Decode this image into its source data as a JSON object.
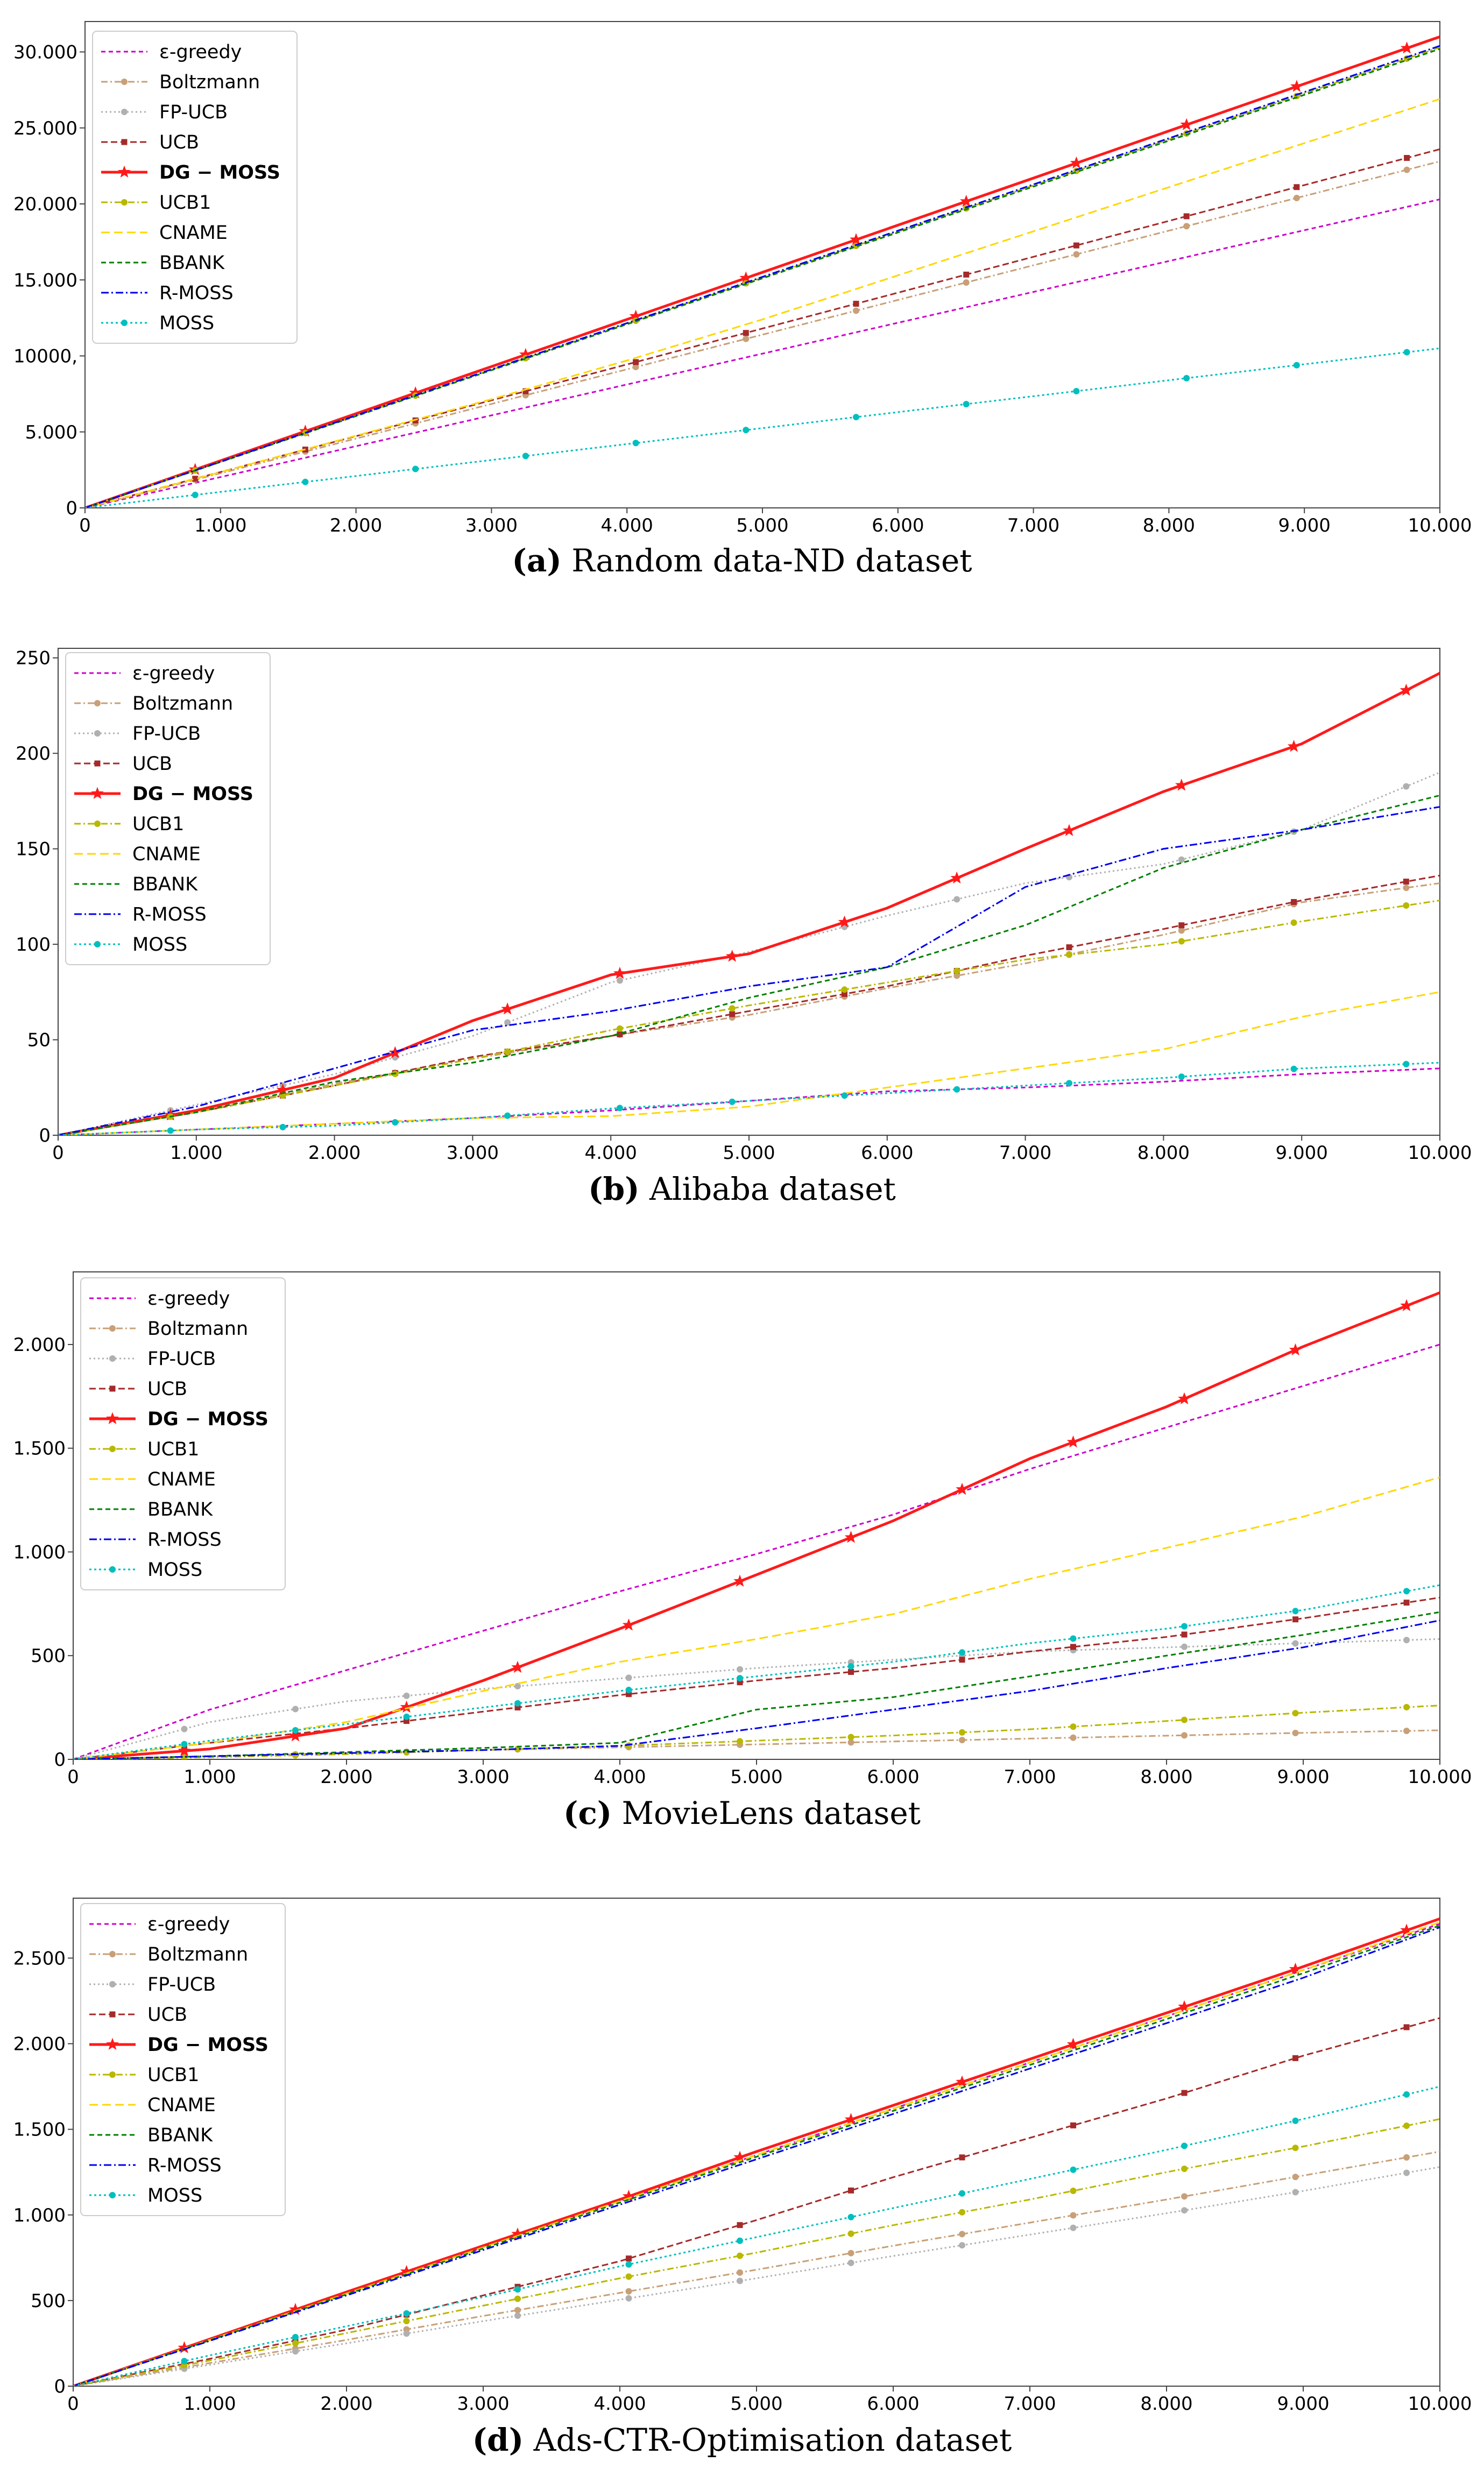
{
  "legend_series": [
    "ε-greedy",
    "Boltzmann",
    "FP-UCB",
    "UCB",
    "DG − MOSS",
    "UCB1",
    "CNAME",
    "BBANK",
    "R-MOSS",
    "MOSS"
  ],
  "colors": {
    "ε-greedy": "#cc00cc",
    "Boltzmann": "#c8a078",
    "FP-UCB": "#b0b0b0",
    "UCB": "#a52a2a",
    "DG − MOSS": "#ff1a1a",
    "UCB1": "#b8b800",
    "CNAME": "#ffd700",
    "BBANK": "#008000",
    "R-MOSS": "#0000ee",
    "MOSS": "#00bfbf"
  },
  "chart_data": [
    {
      "type": "line",
      "panel_label": "(a)",
      "caption": "Random data-ND dataset",
      "xlim": [
        0,
        10000
      ],
      "ylim": [
        0,
        32000
      ],
      "xticks": [
        0,
        1000,
        2000,
        3000,
        4000,
        5000,
        6000,
        7000,
        8000,
        9000,
        10000
      ],
      "xtick_labels": [
        "0",
        "1.000",
        "2.000",
        "3.000",
        "4.000",
        "5.000",
        "6.000",
        "7.000",
        "8.000",
        "9.000",
        "10.000"
      ],
      "yticks": [
        0,
        5000,
        10000,
        15000,
        20000,
        25000,
        30000
      ],
      "ytick_labels": [
        "0",
        "5.000",
        "10000,",
        "15.000",
        "20.000",
        "25.000",
        "30.000"
      ],
      "x": [
        0,
        1000,
        2000,
        3000,
        4000,
        5000,
        6000,
        7000,
        8000,
        9000,
        10000
      ],
      "series": [
        {
          "name": "ε-greedy",
          "values": [
            0,
            2030,
            4060,
            6090,
            8120,
            10150,
            12180,
            14210,
            16240,
            18270,
            20300
          ]
        },
        {
          "name": "Boltzmann",
          "values": [
            0,
            2280,
            4560,
            6840,
            9120,
            11400,
            13680,
            15960,
            18240,
            20520,
            22800
          ]
        },
        {
          "name": "FP-UCB",
          "values": [
            0,
            3030,
            6060,
            9090,
            12120,
            15150,
            18180,
            21210,
            24240,
            27270,
            30300
          ]
        },
        {
          "name": "UCB",
          "values": [
            0,
            2360,
            4720,
            7080,
            9440,
            11800,
            14160,
            16520,
            18880,
            21240,
            23600
          ]
        },
        {
          "name": "DG − MOSS",
          "values": [
            0,
            3100,
            6200,
            9300,
            12400,
            15500,
            18600,
            21700,
            24800,
            27900,
            31000
          ]
        },
        {
          "name": "UCB1",
          "values": [
            0,
            3030,
            6060,
            9090,
            12120,
            15150,
            18180,
            21210,
            24240,
            27270,
            30300
          ]
        },
        {
          "name": "CNAME",
          "values": [
            0,
            2350,
            4750,
            7150,
            9700,
            12400,
            15300,
            18200,
            21100,
            24000,
            26900
          ]
        },
        {
          "name": "BBANK",
          "values": [
            0,
            3020,
            6040,
            9060,
            12080,
            15100,
            18120,
            21140,
            24160,
            27180,
            30200
          ]
        },
        {
          "name": "R-MOSS",
          "values": [
            0,
            3040,
            6080,
            9120,
            12160,
            15200,
            18240,
            21280,
            24320,
            27360,
            30400
          ]
        },
        {
          "name": "MOSS",
          "values": [
            0,
            1050,
            2100,
            3150,
            4200,
            5250,
            6300,
            7350,
            8400,
            9450,
            10500
          ]
        }
      ]
    },
    {
      "type": "line",
      "panel_label": "(b)",
      "caption": "Alibaba dataset",
      "xlim": [
        0,
        10000
      ],
      "ylim": [
        0,
        255
      ],
      "xticks": [
        0,
        1000,
        2000,
        3000,
        4000,
        5000,
        6000,
        7000,
        8000,
        9000,
        10000
      ],
      "xtick_labels": [
        "0",
        "1.000",
        "2.000",
        "3.000",
        "4.000",
        "5.000",
        "6.000",
        "7.000",
        "8.000",
        "9.000",
        "10.000"
      ],
      "yticks": [
        0,
        50,
        100,
        150,
        200,
        250
      ],
      "ytick_labels": [
        "0",
        "50",
        "100",
        "150",
        "200",
        "250"
      ],
      "x": [
        0,
        1000,
        2000,
        3000,
        4000,
        5000,
        6000,
        7000,
        8000,
        9000,
        10000
      ],
      "series": [
        {
          "name": "ε-greedy",
          "values": [
            0,
            3,
            6,
            9,
            13,
            18,
            23,
            25,
            28,
            32,
            35
          ]
        },
        {
          "name": "Boltzmann",
          "values": [
            0,
            12,
            27,
            40,
            52,
            63,
            77,
            90,
            105,
            122,
            132
          ]
        },
        {
          "name": "FP-UCB",
          "values": [
            0,
            16,
            32,
            52,
            80,
            96,
            115,
            132,
            142,
            160,
            190
          ]
        },
        {
          "name": "UCB",
          "values": [
            0,
            12,
            26,
            41,
            52,
            65,
            78,
            94,
            108,
            123,
            136
          ]
        },
        {
          "name": "DG − MOSS",
          "values": [
            0,
            13,
            30,
            60,
            84,
            95,
            119,
            150,
            180,
            205,
            242
          ]
        },
        {
          "name": "UCB1",
          "values": [
            0,
            12,
            26,
            40,
            55,
            68,
            80,
            92,
            100,
            112,
            123
          ]
        },
        {
          "name": "CNAME",
          "values": [
            0,
            3,
            6,
            9,
            10,
            15,
            25,
            35,
            45,
            62,
            75
          ]
        },
        {
          "name": "BBANK",
          "values": [
            0,
            12,
            28,
            38,
            52,
            72,
            88,
            110,
            140,
            160,
            178
          ]
        },
        {
          "name": "R-MOSS",
          "values": [
            0,
            15,
            35,
            55,
            65,
            78,
            88,
            130,
            150,
            160,
            172
          ]
        },
        {
          "name": "MOSS",
          "values": [
            0,
            3,
            5,
            9,
            14,
            18,
            22,
            26,
            30,
            35,
            38
          ]
        }
      ]
    },
    {
      "type": "line",
      "panel_label": "(c)",
      "caption": "MovieLens dataset",
      "xlim": [
        0,
        10000
      ],
      "ylim": [
        0,
        2350
      ],
      "xticks": [
        0,
        1000,
        2000,
        3000,
        4000,
        5000,
        6000,
        7000,
        8000,
        9000,
        10000
      ],
      "xtick_labels": [
        "0",
        "1.000",
        "2.000",
        "3.000",
        "4.000",
        "5.000",
        "6.000",
        "7.000",
        "8.000",
        "9.000",
        "10.000"
      ],
      "yticks": [
        0,
        500,
        1000,
        1500,
        2000
      ],
      "ytick_labels": [
        "0",
        "500",
        "1.000",
        "1.500",
        "2.000"
      ],
      "x": [
        0,
        1000,
        2000,
        3000,
        4000,
        5000,
        6000,
        7000,
        8000,
        9000,
        10000
      ],
      "series": [
        {
          "name": "ε-greedy",
          "values": [
            0,
            240,
            430,
            620,
            810,
            990,
            1180,
            1400,
            1600,
            1800,
            2000
          ]
        },
        {
          "name": "Boltzmann",
          "values": [
            0,
            15,
            30,
            45,
            58,
            72,
            86,
            100,
            114,
            128,
            140
          ]
        },
        {
          "name": "FP-UCB",
          "values": [
            0,
            180,
            280,
            340,
            390,
            440,
            480,
            520,
            540,
            560,
            580
          ]
        },
        {
          "name": "UCB",
          "values": [
            0,
            80,
            150,
            230,
            310,
            380,
            440,
            520,
            590,
            680,
            780
          ]
        },
        {
          "name": "DG − MOSS",
          "values": [
            0,
            50,
            150,
            380,
            630,
            890,
            1150,
            1450,
            1700,
            1990,
            2250
          ]
        },
        {
          "name": "UCB1",
          "values": [
            0,
            10,
            25,
            45,
            65,
            90,
            115,
            145,
            185,
            225,
            260
          ]
        },
        {
          "name": "CNAME",
          "values": [
            0,
            80,
            180,
            330,
            470,
            580,
            700,
            870,
            1020,
            1170,
            1360
          ]
        },
        {
          "name": "BBANK",
          "values": [
            0,
            15,
            35,
            55,
            80,
            240,
            300,
            400,
            500,
            600,
            710
          ]
        },
        {
          "name": "R-MOSS",
          "values": [
            0,
            15,
            30,
            45,
            65,
            150,
            240,
            330,
            440,
            540,
            670
          ]
        },
        {
          "name": "MOSS",
          "values": [
            0,
            90,
            170,
            250,
            330,
            400,
            470,
            560,
            630,
            720,
            840
          ]
        }
      ]
    },
    {
      "type": "line",
      "panel_label": "(d)",
      "caption": "Ads-CTR-Optimisation dataset",
      "xlim": [
        0,
        10000
      ],
      "ylim": [
        0,
        2850
      ],
      "xticks": [
        0,
        1000,
        2000,
        3000,
        4000,
        5000,
        6000,
        7000,
        8000,
        9000,
        10000
      ],
      "xtick_labels": [
        "0",
        "1.000",
        "2.000",
        "3.000",
        "4.000",
        "5.000",
        "6.000",
        "7.000",
        "8.000",
        "9.000",
        "10.000"
      ],
      "yticks": [
        0,
        500,
        1000,
        1500,
        2000,
        2500
      ],
      "ytick_labels": [
        "0",
        "500",
        "1.000",
        "1.500",
        "2.000",
        "2.500"
      ],
      "x": [
        0,
        1000,
        2000,
        3000,
        4000,
        5000,
        6000,
        7000,
        8000,
        9000,
        10000
      ],
      "series": [
        {
          "name": "ε-greedy",
          "values": [
            0,
            270,
            540,
            810,
            1080,
            1350,
            1620,
            1890,
            2160,
            2430,
            2700
          ]
        },
        {
          "name": "Boltzmann",
          "values": [
            0,
            135,
            270,
            410,
            545,
            680,
            820,
            955,
            1090,
            1230,
            1370
          ]
        },
        {
          "name": "FP-UCB",
          "values": [
            0,
            125,
            250,
            380,
            505,
            630,
            760,
            885,
            1010,
            1140,
            1280
          ]
        },
        {
          "name": "UCB",
          "values": [
            0,
            160,
            330,
            530,
            730,
            970,
            1220,
            1450,
            1680,
            1930,
            2150
          ]
        },
        {
          "name": "DG − MOSS",
          "values": [
            0,
            275,
            550,
            820,
            1090,
            1370,
            1640,
            1910,
            2180,
            2450,
            2730
          ]
        },
        {
          "name": "UCB1",
          "values": [
            0,
            150,
            310,
            470,
            630,
            780,
            940,
            1090,
            1250,
            1400,
            1560
          ]
        },
        {
          "name": "CNAME",
          "values": [
            0,
            270,
            540,
            810,
            1080,
            1350,
            1620,
            1890,
            2160,
            2430,
            2710
          ]
        },
        {
          "name": "BBANK",
          "values": [
            0,
            268,
            536,
            804,
            1072,
            1340,
            1608,
            1876,
            2144,
            2412,
            2690
          ]
        },
        {
          "name": "R-MOSS",
          "values": [
            0,
            265,
            530,
            795,
            1060,
            1325,
            1590,
            1855,
            2120,
            2385,
            2680
          ]
        },
        {
          "name": "MOSS",
          "values": [
            0,
            180,
            350,
            520,
            700,
            870,
            1040,
            1210,
            1380,
            1560,
            1750
          ]
        }
      ]
    }
  ]
}
